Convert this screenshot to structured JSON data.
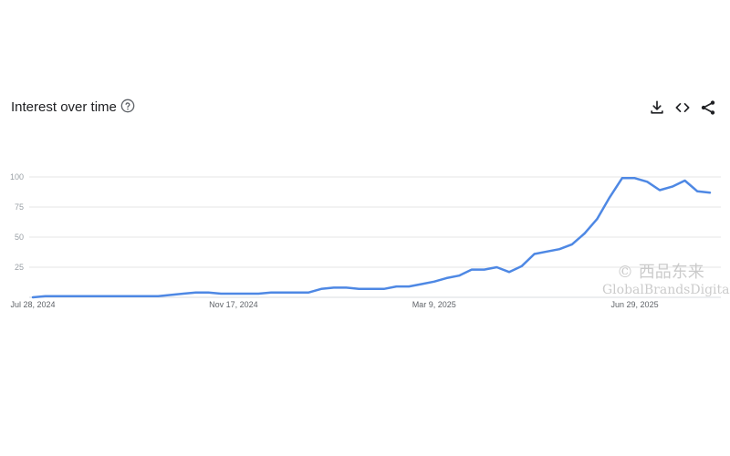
{
  "header": {
    "title": "Interest over time",
    "help_icon": "help-circle-icon",
    "actions": [
      {
        "name": "download-icon"
      },
      {
        "name": "embed-code-icon"
      },
      {
        "name": "share-icon"
      }
    ]
  },
  "chart_data": {
    "type": "line",
    "title": "Interest over time",
    "xlabel": "",
    "ylabel": "",
    "ylim": [
      0,
      100
    ],
    "y_ticks": [
      25,
      50,
      75,
      100
    ],
    "x_tick_labels": [
      "Jul 28, 2024",
      "Nov 17, 2024",
      "Mar 9, 2025",
      "Jun 29, 2025"
    ],
    "x_tick_positions": [
      0,
      16,
      32,
      48
    ],
    "grid": true,
    "series": [
      {
        "color": "#4e88e4",
        "values": [
          0,
          1,
          1,
          1,
          1,
          1,
          1,
          1,
          1,
          1,
          1,
          2,
          3,
          4,
          4,
          3,
          3,
          3,
          3,
          4,
          4,
          4,
          4,
          7,
          8,
          8,
          7,
          7,
          7,
          9,
          9,
          11,
          13,
          16,
          18,
          23,
          23,
          25,
          21,
          26,
          36,
          38,
          40,
          44,
          53,
          65,
          83,
          99,
          99,
          96,
          89,
          92,
          97,
          88,
          87
        ]
      }
    ]
  },
  "watermark": {
    "line1": "© 西品东来",
    "line2": "GlobalBrandsDigital"
  }
}
